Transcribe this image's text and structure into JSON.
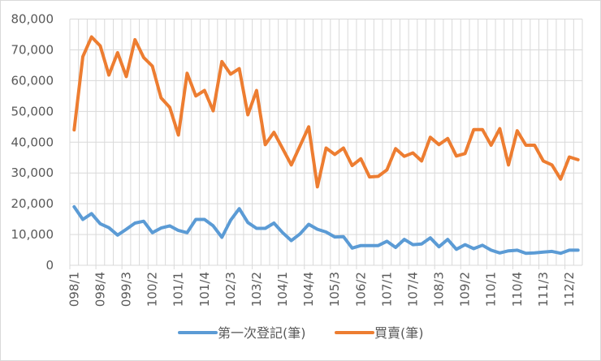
{
  "chart_data": {
    "type": "line",
    "title": "",
    "xlabel": "",
    "ylabel": "",
    "ylim": [
      0,
      80000
    ],
    "y_ticks": [
      0,
      10000,
      20000,
      30000,
      40000,
      50000,
      60000,
      70000,
      80000
    ],
    "y_tick_labels": [
      "0",
      "10,000",
      "20,000",
      "30,000",
      "40,000",
      "50,000",
      "60,000",
      "70,000",
      "80,000"
    ],
    "grid": {
      "horizontal": true,
      "vertical": true
    },
    "legend_position": "bottom",
    "x": [
      "098/1",
      "098/2",
      "098/3",
      "098/4",
      "099/1",
      "099/2",
      "099/3",
      "099/4",
      "100/1",
      "100/2",
      "100/3",
      "100/4",
      "101/1",
      "101/2",
      "101/3",
      "101/4",
      "102/1",
      "102/2",
      "102/3",
      "102/4",
      "103/1",
      "103/2",
      "103/3",
      "103/4",
      "104/1",
      "104/2",
      "104/3",
      "104/4",
      "105/1",
      "105/2",
      "105/3",
      "105/4",
      "106/1",
      "106/2",
      "106/3",
      "106/4",
      "107/1",
      "107/2",
      "107/3",
      "107/4",
      "108/1",
      "108/2",
      "108/3",
      "108/4",
      "109/1",
      "109/2",
      "109/3",
      "109/4",
      "110/1",
      "110/2",
      "110/3",
      "110/4",
      "111/1",
      "111/2",
      "111/3",
      "111/4",
      "112/1",
      "112/2",
      "112/3"
    ],
    "x_tick_labels_shown": [
      "098/1",
      "098/4",
      "099/3",
      "100/2",
      "101/1",
      "101/4",
      "102/3",
      "103/2",
      "104/1",
      "104/4",
      "105/3",
      "106/2",
      "107/1",
      "107/4",
      "108/3",
      "109/2",
      "110/1",
      "110/4",
      "111/3",
      "112/2"
    ],
    "series": [
      {
        "name": "第一次登記(筆)",
        "color": "#5b9bd5",
        "values": [
          19000,
          14900,
          16800,
          13500,
          12200,
          9800,
          11700,
          13700,
          14300,
          10600,
          12100,
          12800,
          11300,
          10600,
          14900,
          14900,
          12800,
          9100,
          14600,
          18400,
          13900,
          12000,
          12000,
          13700,
          10600,
          8000,
          10200,
          13300,
          11700,
          10800,
          9200,
          9300,
          5600,
          6400,
          6400,
          6400,
          7800,
          5800,
          8400,
          6700,
          6900,
          8900,
          6000,
          8400,
          5200,
          6700,
          5400,
          6500,
          4900,
          4000,
          4700,
          4900,
          3900,
          4000,
          4300,
          4500,
          3900,
          4900,
          4900
        ]
      },
      {
        "name": "買賣(筆)",
        "color": "#ed7d31",
        "values": [
          44000,
          67800,
          74200,
          71300,
          61800,
          69100,
          61300,
          73300,
          67500,
          64700,
          54400,
          51300,
          42300,
          62400,
          55000,
          56800,
          50200,
          66200,
          62100,
          63900,
          48900,
          56800,
          39200,
          43200,
          37900,
          32600,
          38800,
          45000,
          25500,
          38100,
          36000,
          38100,
          32400,
          34600,
          28700,
          28900,
          31000,
          37900,
          35400,
          36500,
          33900,
          41600,
          39200,
          41200,
          35500,
          36300,
          44100,
          44100,
          39000,
          44400,
          32600,
          43700,
          39000,
          39000,
          33900,
          32600,
          28000,
          35200,
          34300
        ]
      }
    ]
  },
  "legend": {
    "items": [
      {
        "label": "第一次登記(筆)",
        "color": "#5b9bd5"
      },
      {
        "label": "買賣(筆)",
        "color": "#ed7d31"
      }
    ]
  }
}
